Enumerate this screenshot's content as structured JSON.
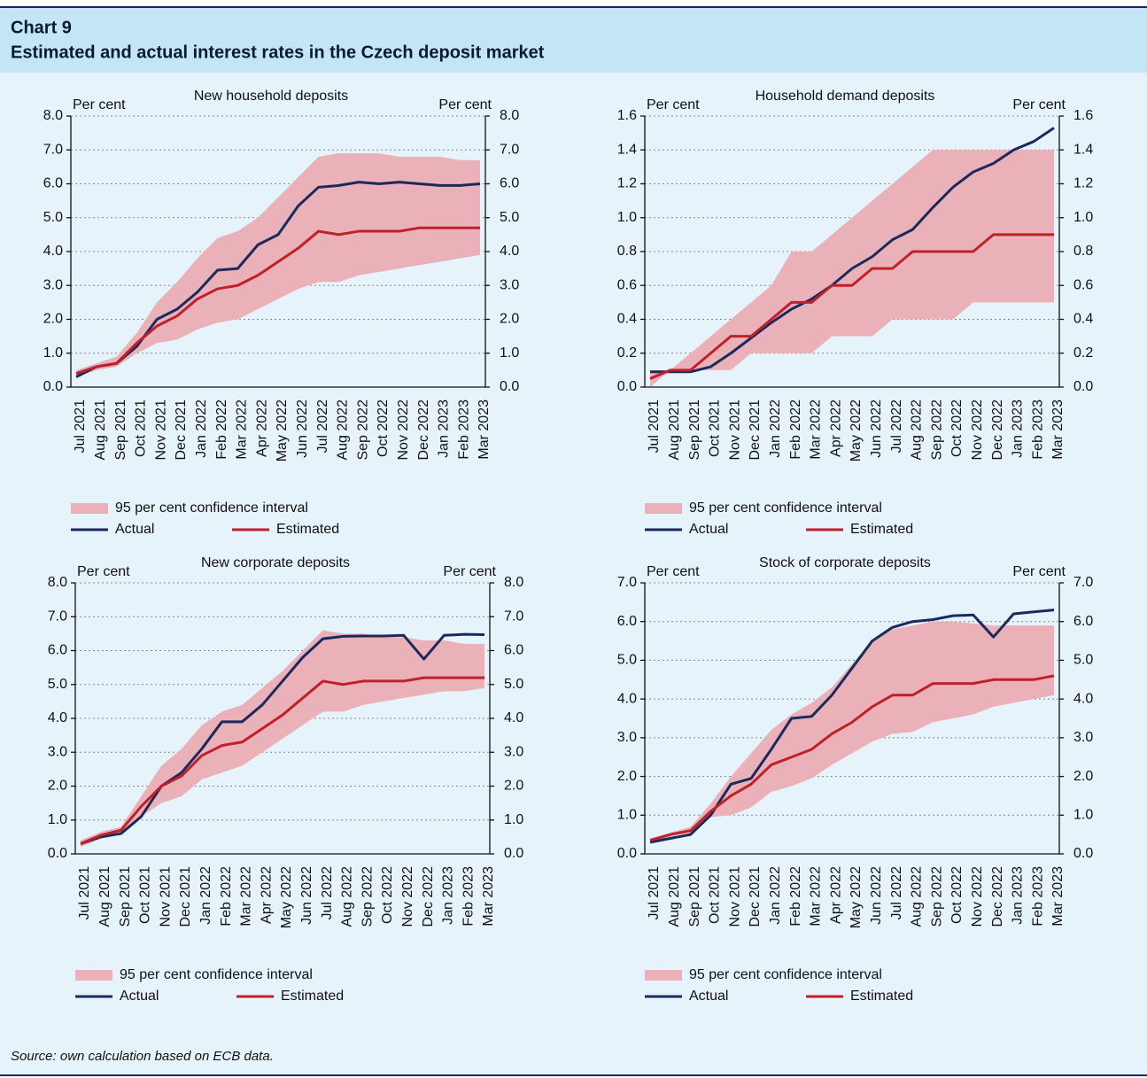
{
  "header": {
    "label": "Chart 9",
    "title": "Estimated and actual interest rates in the Czech deposit market"
  },
  "source": "Source: own calculation based on ECB data.",
  "chart_data": [
    {
      "type": "line",
      "title": "New household deposits",
      "ylabel": "Per cent",
      "y2label": "Per cent",
      "categories": [
        "Jul 2021",
        "Aug 2021",
        "Sep 2021",
        "Oct 2021",
        "Nov 2021",
        "Dec 2021",
        "Jan 2022",
        "Feb 2022",
        "Mar 2022",
        "Apr 2022",
        "May 2022",
        "Jun 2022",
        "Jul 2022",
        "Aug 2022",
        "Sep 2022",
        "Oct 2022",
        "Nov 2022",
        "Dec 2022",
        "Jan 2023",
        "Feb 2023",
        "Mar 2023"
      ],
      "ylim": [
        0,
        8
      ],
      "yticks": [
        {
          "value": 0,
          "label": "0.0"
        },
        {
          "value": 1,
          "label": "1.0"
        },
        {
          "value": 2,
          "label": "2.0"
        },
        {
          "value": 3,
          "label": "3.0"
        },
        {
          "value": 4,
          "label": "4.0"
        },
        {
          "value": 5,
          "label": "5.0"
        },
        {
          "value": 6,
          "label": "6.0"
        },
        {
          "value": 7,
          "label": "7.0"
        },
        {
          "value": 8,
          "label": "8.0"
        }
      ],
      "y2lim": [
        0,
        8
      ],
      "y2ticks": [
        {
          "value": 0,
          "label": "0.0"
        },
        {
          "value": 1,
          "label": "1.0"
        },
        {
          "value": 2,
          "label": "2.0"
        },
        {
          "value": 3,
          "label": "3.0"
        },
        {
          "value": 4,
          "label": "4.0"
        },
        {
          "value": 5,
          "label": "5.0"
        },
        {
          "value": 6,
          "label": "6.0"
        },
        {
          "value": 7,
          "label": "7.0"
        },
        {
          "value": 8,
          "label": "8.0"
        }
      ],
      "grid": true,
      "band": {
        "name": "95 per cent confidence interval",
        "color": "#ebb1b9",
        "upper": [
          0.5,
          0.7,
          0.9,
          1.6,
          2.5,
          3.1,
          3.8,
          4.4,
          4.6,
          5.0,
          5.6,
          6.2,
          6.8,
          6.9,
          6.9,
          6.9,
          6.8,
          6.8,
          6.8,
          6.7,
          6.7
        ],
        "lower": [
          0.3,
          0.5,
          0.6,
          1.0,
          1.3,
          1.4,
          1.7,
          1.9,
          2.0,
          2.3,
          2.6,
          2.9,
          3.1,
          3.1,
          3.3,
          3.4,
          3.5,
          3.6,
          3.7,
          3.8,
          3.9
        ]
      },
      "series": [
        {
          "name": "Actual",
          "color": "#1b2a5c",
          "values": [
            0.3,
            0.6,
            0.7,
            1.2,
            2.0,
            2.3,
            2.8,
            3.45,
            3.5,
            4.2,
            4.5,
            5.35,
            5.9,
            5.95,
            6.05,
            6.0,
            6.05,
            6.0,
            5.95,
            5.95,
            6.0
          ]
        },
        {
          "name": "Estimated",
          "color": "#c0202a",
          "values": [
            0.4,
            0.6,
            0.7,
            1.3,
            1.8,
            2.1,
            2.6,
            2.9,
            3.0,
            3.3,
            3.7,
            4.1,
            4.6,
            4.5,
            4.6,
            4.6,
            4.6,
            4.7,
            4.7,
            4.7,
            4.7
          ]
        }
      ]
    },
    {
      "type": "line",
      "title": "Household demand deposits",
      "ylabel": "Per cent",
      "y2label": "Per cent",
      "categories": [
        "Jul 2021",
        "Aug 2021",
        "Sep 2021",
        "Oct 2021",
        "Nov 2021",
        "Dec 2021",
        "Jan 2022",
        "Feb 2022",
        "Mar 2022",
        "Apr 2022",
        "May 2022",
        "Jun 2022",
        "Jul 2022",
        "Aug 2022",
        "Sep 2022",
        "Oct 2022",
        "Nov 2022",
        "Dec 2022",
        "Jan 2023",
        "Feb 2023",
        "Mar 2023"
      ],
      "ylim": [
        0,
        1.6
      ],
      "yticks": [
        {
          "value": 0,
          "label": "0.0"
        },
        0.2,
        0.4,
        0.6,
        0.8,
        {
          "value": 1,
          "label": "1.0"
        },
        1.2,
        1.4,
        1.6
      ],
      "y2lim": [
        0,
        1.6
      ],
      "y2ticks": [
        {
          "value": 0,
          "label": "0.0"
        },
        0.2,
        0.4,
        0.6,
        0.8,
        {
          "value": 1,
          "label": "1.0"
        },
        1.2,
        1.4,
        1.6
      ],
      "grid": true,
      "band": {
        "name": "95 per cent confidence interval",
        "color": "#ebb1b9",
        "upper": [
          0.1,
          0.1,
          0.2,
          0.3,
          0.4,
          0.5,
          0.6,
          0.8,
          0.8,
          0.9,
          1.0,
          1.1,
          1.2,
          1.3,
          1.4,
          1.4,
          1.4,
          1.4,
          1.4,
          1.4,
          1.4
        ],
        "lower": [
          0.0,
          0.1,
          0.1,
          0.1,
          0.1,
          0.2,
          0.2,
          0.2,
          0.2,
          0.3,
          0.3,
          0.3,
          0.4,
          0.4,
          0.4,
          0.4,
          0.5,
          0.5,
          0.5,
          0.5,
          0.5
        ]
      },
      "series": [
        {
          "name": "Actual",
          "color": "#1b2a5c",
          "values": [
            0.09,
            0.09,
            0.09,
            0.12,
            0.2,
            0.29,
            0.38,
            0.46,
            0.52,
            0.6,
            0.7,
            0.77,
            0.87,
            0.93,
            1.06,
            1.18,
            1.27,
            1.32,
            1.4,
            1.45,
            1.53
          ]
        },
        {
          "name": "Estimated",
          "color": "#c0202a",
          "values": [
            0.05,
            0.1,
            0.1,
            0.2,
            0.3,
            0.3,
            0.4,
            0.5,
            0.5,
            0.6,
            0.6,
            0.7,
            0.7,
            0.8,
            0.8,
            0.8,
            0.8,
            0.9,
            0.9,
            0.9,
            0.9
          ]
        }
      ]
    },
    {
      "type": "line",
      "title": "New corporate deposits",
      "ylabel": "Per cent",
      "y2label": "Per cent",
      "categories": [
        "Jul 2021",
        "Aug 2021",
        "Sep 2021",
        "Oct 2021",
        "Nov 2021",
        "Dec 2021",
        "Jan 2022",
        "Feb 2022",
        "Mar 2022",
        "Apr 2022",
        "May 2022",
        "Jun 2022",
        "Jul 2022",
        "Aug 2022",
        "Sep 2022",
        "Oct 2022",
        "Nov 2022",
        "Dec 2022",
        "Jan 2023",
        "Feb 2023",
        "Mar 2023"
      ],
      "ylim": [
        0,
        8
      ],
      "yticks": [
        {
          "value": 0,
          "label": "0.0"
        },
        {
          "value": 1,
          "label": "1.0"
        },
        {
          "value": 2,
          "label": "2.0"
        },
        {
          "value": 3,
          "label": "3.0"
        },
        {
          "value": 4,
          "label": "4.0"
        },
        {
          "value": 5,
          "label": "5.0"
        },
        {
          "value": 6,
          "label": "6.0"
        },
        {
          "value": 7,
          "label": "7.0"
        },
        {
          "value": 8,
          "label": "8.0"
        }
      ],
      "y2lim": [
        0,
        8
      ],
      "y2ticks": [
        {
          "value": 0,
          "label": "0.0"
        },
        {
          "value": 1,
          "label": "1.0"
        },
        {
          "value": 2,
          "label": "2.0"
        },
        {
          "value": 3,
          "label": "3.0"
        },
        {
          "value": 4,
          "label": "4.0"
        },
        {
          "value": 5,
          "label": "5.0"
        },
        {
          "value": 6,
          "label": "6.0"
        },
        {
          "value": 7,
          "label": "7.0"
        },
        {
          "value": 8,
          "label": "8.0"
        }
      ],
      "grid": true,
      "band": {
        "name": "95 per cent confidence interval",
        "color": "#ebb1b9",
        "upper": [
          0.4,
          0.65,
          0.8,
          1.7,
          2.6,
          3.1,
          3.8,
          4.2,
          4.4,
          4.9,
          5.4,
          6.0,
          6.6,
          6.5,
          6.5,
          6.4,
          6.4,
          6.3,
          6.3,
          6.2,
          6.2
        ],
        "lower": [
          0.2,
          0.45,
          0.6,
          1.1,
          1.5,
          1.7,
          2.2,
          2.4,
          2.6,
          3.0,
          3.4,
          3.8,
          4.2,
          4.2,
          4.4,
          4.5,
          4.6,
          4.7,
          4.8,
          4.8,
          4.9
        ]
      },
      "series": [
        {
          "name": "Actual",
          "color": "#1b2a5c",
          "values": [
            0.3,
            0.5,
            0.6,
            1.1,
            2.0,
            2.4,
            3.1,
            3.9,
            3.9,
            4.4,
            5.1,
            5.8,
            6.35,
            6.42,
            6.43,
            6.43,
            6.45,
            5.75,
            6.45,
            6.48,
            6.47
          ]
        },
        {
          "name": "Estimated",
          "color": "#c0202a",
          "values": [
            0.3,
            0.55,
            0.7,
            1.4,
            2.0,
            2.3,
            2.9,
            3.2,
            3.3,
            3.7,
            4.1,
            4.6,
            5.1,
            5.0,
            5.1,
            5.1,
            5.1,
            5.2,
            5.2,
            5.2,
            5.2
          ]
        }
      ]
    },
    {
      "type": "line",
      "title": "Stock of corporate deposits",
      "ylabel": "Per cent",
      "y2label": "Per cent",
      "categories": [
        "Jul 2021",
        "Aug 2021",
        "Sep 2021",
        "Oct 2021",
        "Nov 2021",
        "Dec 2021",
        "Jan 2022",
        "Feb 2022",
        "Mar 2022",
        "Apr 2022",
        "May 2022",
        "Jun 2022",
        "Jul 2022",
        "Aug 2022",
        "Sep 2022",
        "Oct 2022",
        "Nov 2022",
        "Dec 2022",
        "Jan 2023",
        "Feb 2023",
        "Mar 2023"
      ],
      "ylim": [
        0,
        7
      ],
      "yticks": [
        {
          "value": 0,
          "label": "0.0"
        },
        {
          "value": 1,
          "label": "1.0"
        },
        {
          "value": 2,
          "label": "2.0"
        },
        {
          "value": 3,
          "label": "3.0"
        },
        {
          "value": 4,
          "label": "4.0"
        },
        {
          "value": 5,
          "label": "5.0"
        },
        {
          "value": 6,
          "label": "6.0"
        },
        {
          "value": 7,
          "label": "7.0"
        }
      ],
      "y2lim": [
        0,
        7
      ],
      "y2ticks": [
        {
          "value": 0,
          "label": "0.0"
        },
        {
          "value": 1,
          "label": "1.0"
        },
        {
          "value": 2,
          "label": "2.0"
        },
        {
          "value": 3,
          "label": "3.0"
        },
        {
          "value": 4,
          "label": "4.0"
        },
        {
          "value": 5,
          "label": "5.0"
        },
        {
          "value": 6,
          "label": "6.0"
        },
        {
          "value": 7,
          "label": "7.0"
        }
      ],
      "grid": true,
      "band": {
        "name": "95 per cent confidence interval",
        "color": "#ebb1b9",
        "upper": [
          0.4,
          0.55,
          0.7,
          1.3,
          2.0,
          2.6,
          3.2,
          3.6,
          3.9,
          4.3,
          4.9,
          5.5,
          5.8,
          5.9,
          6.0,
          6.0,
          5.95,
          5.9,
          5.9,
          5.9,
          5.9
        ],
        "lower": [
          0.3,
          0.45,
          0.55,
          0.95,
          1.0,
          1.2,
          1.6,
          1.75,
          1.95,
          2.3,
          2.6,
          2.9,
          3.1,
          3.15,
          3.4,
          3.5,
          3.6,
          3.8,
          3.9,
          4.0,
          4.1
        ]
      },
      "series": [
        {
          "name": "Actual",
          "color": "#1b2a5c",
          "values": [
            0.3,
            0.4,
            0.5,
            1.0,
            1.8,
            1.95,
            2.7,
            3.5,
            3.55,
            4.1,
            4.8,
            5.5,
            5.85,
            6.0,
            6.05,
            6.15,
            6.17,
            5.6,
            6.2,
            6.25,
            6.3
          ]
        },
        {
          "name": "Estimated",
          "color": "#c0202a",
          "values": [
            0.35,
            0.5,
            0.6,
            1.1,
            1.5,
            1.8,
            2.3,
            2.5,
            2.7,
            3.1,
            3.4,
            3.8,
            4.1,
            4.1,
            4.4,
            4.4,
            4.4,
            4.5,
            4.5,
            4.5,
            4.6
          ]
        }
      ]
    }
  ]
}
